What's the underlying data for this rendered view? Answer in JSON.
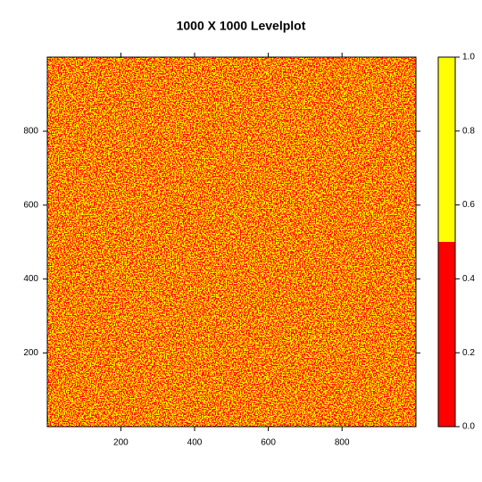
{
  "chart_data": {
    "type": "levelplot",
    "title": "1000 X 1000 Levelplot",
    "xlim": [
      0.5,
      1000.5
    ],
    "ylim": [
      0.5,
      1000.5
    ],
    "xticks": [
      200,
      400,
      600,
      800
    ],
    "yticks": [
      200,
      400,
      600,
      800
    ],
    "colorkey": {
      "lim": [
        0,
        1
      ],
      "breaks": [
        0,
        0.5,
        1
      ],
      "colors": [
        "#ff0000",
        "#ffff00"
      ],
      "ticks": [
        {
          "value": 0,
          "label": "0.0"
        },
        {
          "value": 0.2,
          "label": "0.2"
        },
        {
          "value": 0.4,
          "label": "0.4"
        },
        {
          "value": 0.6,
          "label": "0.6"
        },
        {
          "value": 0.8,
          "label": "0.8"
        },
        {
          "value": 1,
          "label": "1.0"
        }
      ]
    }
  }
}
